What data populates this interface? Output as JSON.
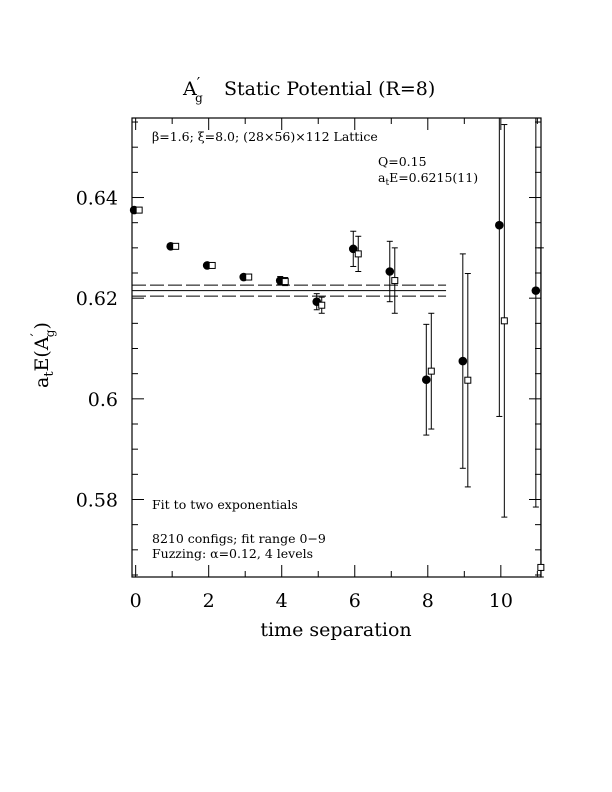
{
  "chart_data": {
    "type": "scatter",
    "title_main": "A",
    "title_prime": "′",
    "title_sub": "g",
    "title_rest": "Static Potential (R=8)",
    "xlabel": "time separation",
    "ylabel_main": "a",
    "ylabel_t": "t",
    "ylabel_mid": "E(A",
    "ylabel_prime": "′",
    "ylabel_sub": "g",
    "ylabel_end": ")",
    "xlim": [
      -0.1,
      11.1
    ],
    "ylim": [
      0.5646,
      0.6558
    ],
    "xticks": [
      {
        "value": 0,
        "label": "0"
      },
      {
        "value": 2,
        "label": "2"
      },
      {
        "value": 4,
        "label": "4"
      },
      {
        "value": 6,
        "label": "6"
      },
      {
        "value": 8,
        "label": "8"
      },
      {
        "value": 10,
        "label": "10"
      }
    ],
    "yticks": [
      {
        "value": 0.58,
        "label": "0.58"
      },
      {
        "value": 0.6,
        "label": "0.6"
      },
      {
        "value": 0.62,
        "label": "0.62"
      },
      {
        "value": 0.64,
        "label": "0.64"
      }
    ],
    "annotations": {
      "lattice": "β=1.6; ξ=8.0; (28×56)×112 Lattice",
      "q": "Q=0.15",
      "energy_prefix": "a",
      "energy_sub": "t",
      "energy_rest": "E=0.6215(11)",
      "fit": "Fit to two exponentials",
      "configs": "8210 configs; fit range 0−9",
      "fuzzing": "Fuzzing: α=0.12, 4 levels"
    },
    "fit": {
      "value": 0.6215,
      "error": 0.0011,
      "t_range": [
        -0.1,
        8.5
      ]
    },
    "series": [
      {
        "marker": "filled-circle",
        "points": [
          {
            "t": 0,
            "y": 0.6375,
            "err": 0.0002
          },
          {
            "t": 1,
            "y": 0.6303,
            "err": 0.0003
          },
          {
            "t": 2,
            "y": 0.6265,
            "err": 0.0004
          },
          {
            "t": 3,
            "y": 0.6242,
            "err": 0.0005
          },
          {
            "t": 4,
            "y": 0.6235,
            "err": 0.0008
          },
          {
            "t": 5,
            "y": 0.6193,
            "err": 0.0016
          },
          {
            "t": 6,
            "y": 0.6298,
            "err": 0.0035
          },
          {
            "t": 7,
            "y": 0.6253,
            "err": 0.006
          },
          {
            "t": 8,
            "y": 0.6038,
            "err": 0.011
          },
          {
            "t": 9,
            "y": 0.6075,
            "err": 0.0213
          },
          {
            "t": 10,
            "y": 0.6345,
            "err": 0.038
          },
          {
            "t": 11,
            "y": 0.6215,
            "err": 0.043
          }
        ]
      },
      {
        "marker": "open-square",
        "points": [
          {
            "t": 0,
            "y": 0.6375,
            "err": 0.0002
          },
          {
            "t": 1,
            "y": 0.6303,
            "err": 0.0003
          },
          {
            "t": 2,
            "y": 0.6265,
            "err": 0.0004
          },
          {
            "t": 3,
            "y": 0.6242,
            "err": 0.0005
          },
          {
            "t": 4,
            "y": 0.6233,
            "err": 0.0008
          },
          {
            "t": 5,
            "y": 0.6186,
            "err": 0.0016
          },
          {
            "t": 6,
            "y": 0.6288,
            "err": 0.0035
          },
          {
            "t": 7,
            "y": 0.6235,
            "err": 0.0065
          },
          {
            "t": 8,
            "y": 0.6055,
            "err": 0.0115
          },
          {
            "t": 9,
            "y": 0.6037,
            "err": 0.0212
          },
          {
            "t": 10,
            "y": 0.6155,
            "err": 0.039
          },
          {
            "t": 11,
            "y": 0.5665,
            "err": 0.0635
          }
        ]
      }
    ]
  }
}
